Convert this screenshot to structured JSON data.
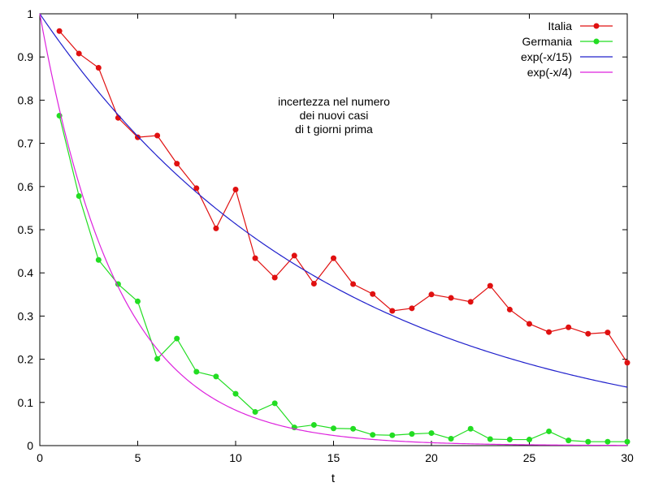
{
  "chart_data": {
    "type": "line",
    "title": "",
    "xlabel": "t",
    "ylabel": "",
    "xlim": [
      0,
      30
    ],
    "ylim": [
      0,
      1
    ],
    "xticks": [
      0,
      5,
      10,
      15,
      20,
      25,
      30
    ],
    "yticks": [
      0,
      0.1,
      0.2,
      0.3,
      0.4,
      0.5,
      0.6,
      0.7,
      0.8,
      0.9,
      1
    ],
    "grid": false,
    "legend_position": "top-right",
    "annotation": [
      "incertezza nel numero",
      "dei nuovi casi",
      "di t giorni prima"
    ],
    "series": [
      {
        "name": "Italia",
        "kind": "points-line",
        "color": "#e01010",
        "x": [
          1,
          2,
          3,
          4,
          5,
          6,
          7,
          8,
          9,
          10,
          11,
          12,
          13,
          14,
          15,
          16,
          17,
          18,
          19,
          20,
          21,
          22,
          23,
          24,
          25,
          26,
          27,
          28,
          29,
          30
        ],
        "y": [
          0.96,
          0.908,
          0.875,
          0.759,
          0.714,
          0.718,
          0.653,
          0.596,
          0.503,
          0.593,
          0.434,
          0.389,
          0.44,
          0.375,
          0.434,
          0.374,
          0.351,
          0.312,
          0.318,
          0.35,
          0.342,
          0.333,
          0.37,
          0.315,
          0.282,
          0.263,
          0.274,
          0.259,
          0.262,
          0.192
        ]
      },
      {
        "name": "Germania",
        "kind": "points-line",
        "color": "#22dd22",
        "x": [
          1,
          2,
          3,
          4,
          5,
          6,
          7,
          8,
          9,
          10,
          11,
          12,
          13,
          14,
          15,
          16,
          17,
          18,
          19,
          20,
          21,
          22,
          23,
          24,
          25,
          26,
          27,
          28,
          29,
          30
        ],
        "y": [
          0.764,
          0.578,
          0.43,
          0.374,
          0.334,
          0.201,
          0.248,
          0.171,
          0.16,
          0.12,
          0.078,
          0.098,
          0.042,
          0.048,
          0.04,
          0.039,
          0.025,
          0.024,
          0.027,
          0.029,
          0.016,
          0.039,
          0.015,
          0.014,
          0.014,
          0.033,
          0.012,
          0.009,
          0.009,
          0.009
        ]
      },
      {
        "name": "exp(-x/15)",
        "kind": "function",
        "color": "#2020cc",
        "tau": 15
      },
      {
        "name": "exp(-x/4)",
        "kind": "function",
        "color": "#dd22dd",
        "tau": 4
      }
    ]
  }
}
